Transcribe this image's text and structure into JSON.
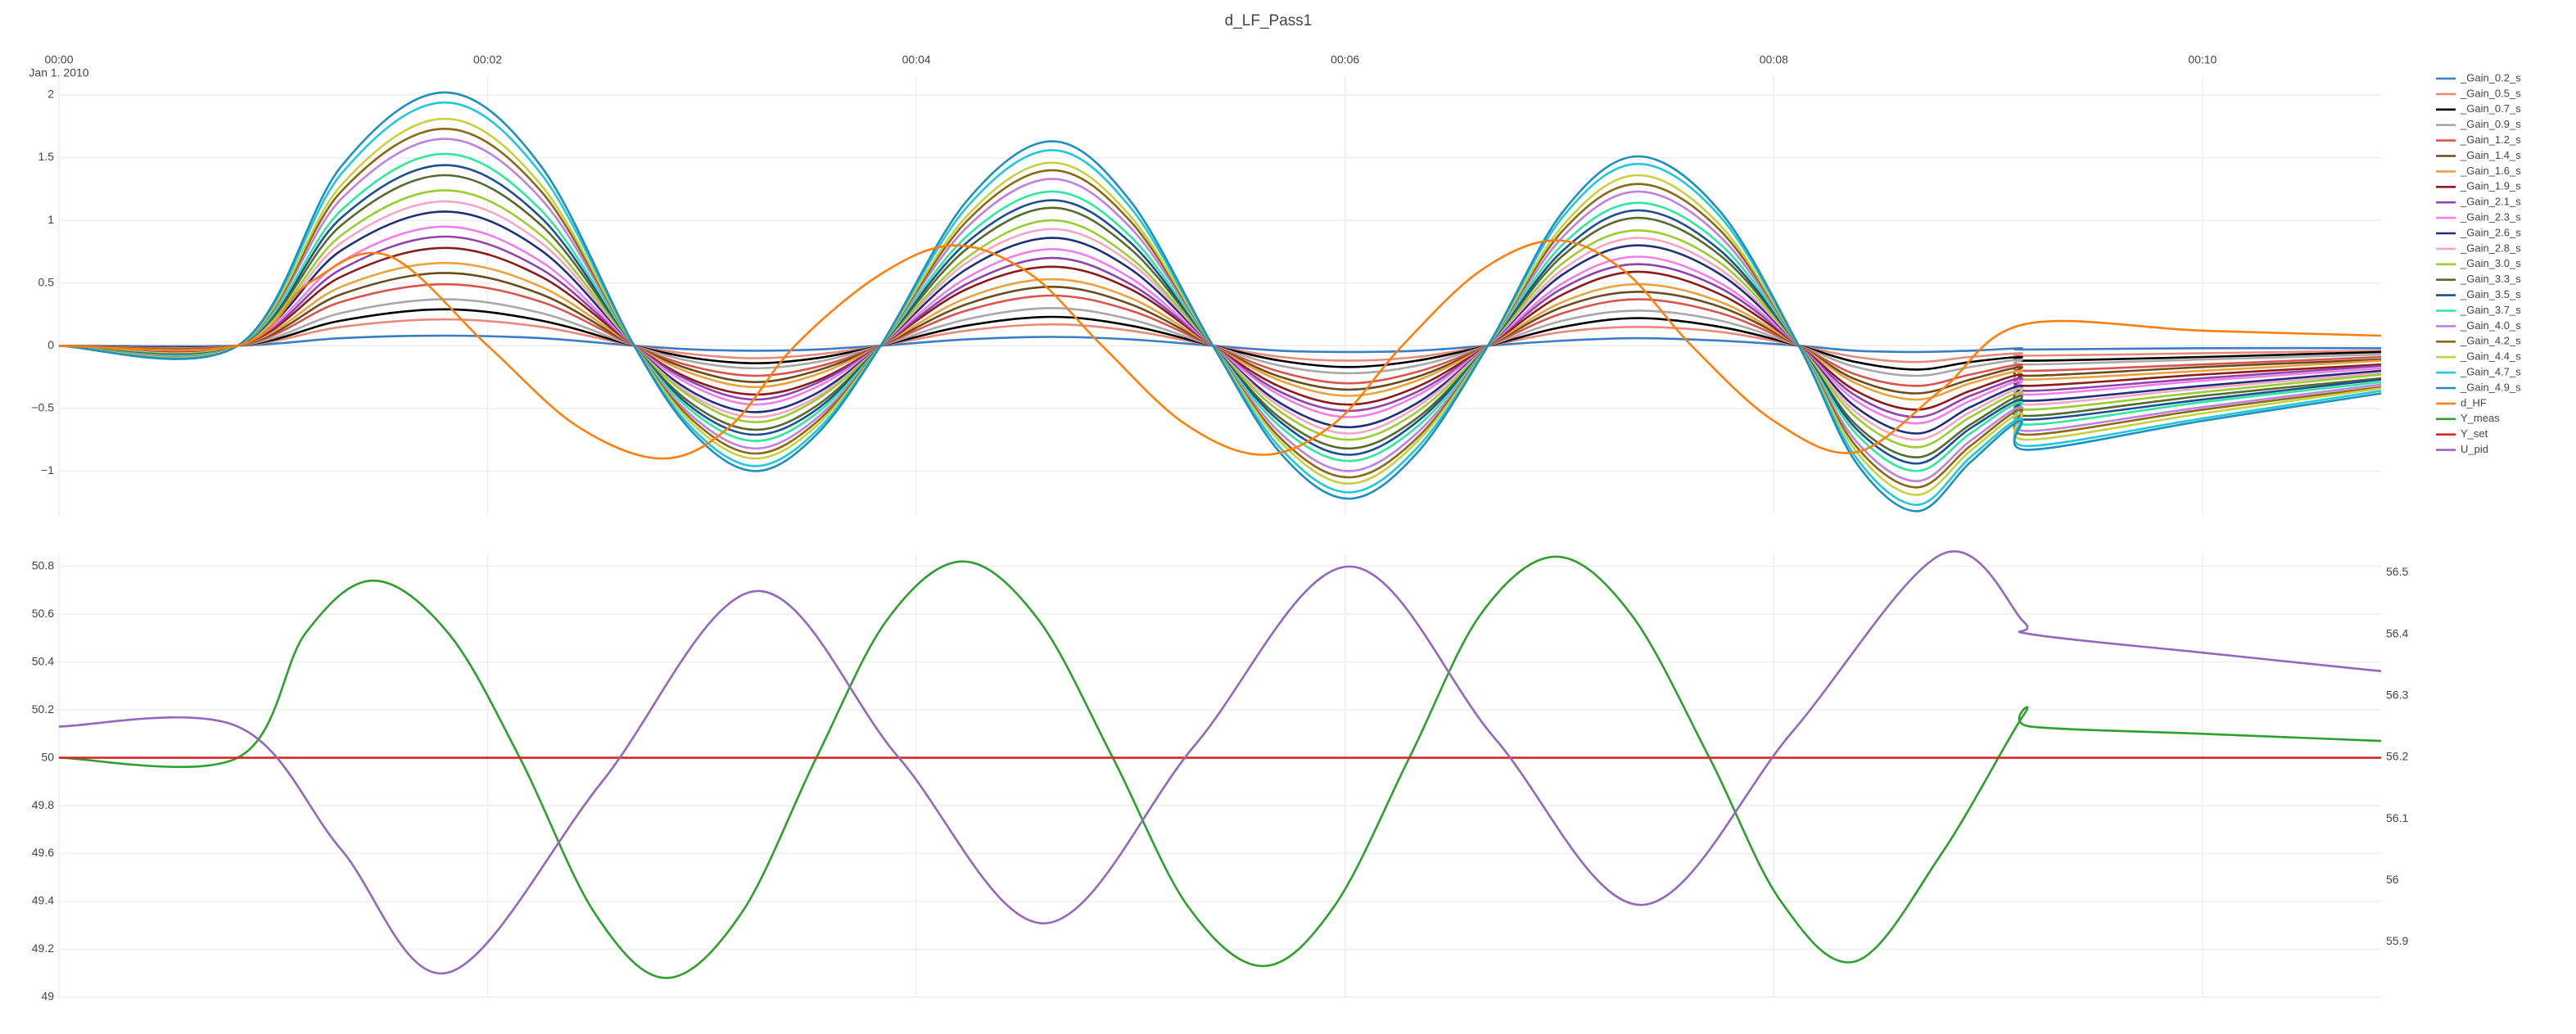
{
  "chart_data": [
    {
      "type": "line",
      "title": "d_LF_Pass1",
      "x_date_label": "Jan 1, 2010",
      "x": [
        0,
        50,
        79,
        108,
        135,
        161,
        178,
        195,
        212,
        230,
        254,
        278,
        300,
        323,
        342,
        361,
        380,
        400,
        421,
        442,
        465,
        487,
        503,
        520,
        535,
        549,
        551,
        600,
        650
      ],
      "xlim": [
        0,
        650
      ],
      "xticks": [
        {
          "value": 0,
          "label": "00:00"
        },
        {
          "value": 120,
          "label": "00:02"
        },
        {
          "value": 240,
          "label": "00:04"
        },
        {
          "value": 360,
          "label": "00:06"
        },
        {
          "value": 480,
          "label": "00:08"
        },
        {
          "value": 600,
          "label": "00:10"
        }
      ],
      "ylim": [
        -1.35,
        2.15
      ],
      "yticks": [
        {
          "value": -1,
          "label": "−1"
        },
        {
          "value": -0.5,
          "label": "−0.5"
        },
        0,
        0.5,
        1,
        1.5,
        2
      ],
      "grid": true,
      "legend": "right",
      "series": [
        {
          "name": "_Gain_0.2_s",
          "color": "#3b7dc4",
          "values": [
            0,
            0,
            0.06,
            0.08,
            0.06,
            0,
            -0.03,
            -0.04,
            -0.03,
            0,
            0.05,
            0.07,
            0.05,
            0,
            -0.04,
            -0.05,
            -0.04,
            0,
            0.04,
            0.06,
            0.04,
            0,
            -0.04,
            -0.05,
            -0.04,
            -0.02,
            -0.03,
            -0.02,
            -0.02
          ]
        },
        {
          "name": "_Gain_0.5_s",
          "color": "#e8897a",
          "values": [
            0,
            0,
            0.15,
            0.21,
            0.15,
            0,
            -0.07,
            -0.1,
            -0.07,
            0,
            0.12,
            0.17,
            0.12,
            0,
            -0.09,
            -0.12,
            -0.09,
            0,
            0.11,
            0.15,
            0.11,
            0,
            -0.09,
            -0.13,
            -0.09,
            -0.06,
            -0.08,
            -0.06,
            -0.04
          ]
        },
        {
          "name": "_Gain_0.7_s",
          "color": "#000000",
          "values": [
            0,
            0,
            0.2,
            0.29,
            0.2,
            0,
            -0.1,
            -0.14,
            -0.1,
            0,
            0.16,
            0.23,
            0.16,
            0,
            -0.12,
            -0.17,
            -0.12,
            0,
            0.15,
            0.22,
            0.15,
            0,
            -0.13,
            -0.19,
            -0.13,
            -0.09,
            -0.12,
            -0.09,
            -0.05
          ]
        },
        {
          "name": "_Gain_0.9_s",
          "color": "#a8a8a8",
          "values": [
            0,
            0,
            0.26,
            0.37,
            0.26,
            0,
            -0.13,
            -0.18,
            -0.13,
            0,
            0.21,
            0.3,
            0.21,
            0,
            -0.16,
            -0.22,
            -0.16,
            0,
            0.2,
            0.28,
            0.2,
            0,
            -0.17,
            -0.24,
            -0.17,
            -0.11,
            -0.15,
            -0.11,
            -0.07
          ]
        },
        {
          "name": "_Gain_1.2_s",
          "color": "#d9534f",
          "values": [
            0,
            0,
            0.35,
            0.49,
            0.35,
            0,
            -0.17,
            -0.24,
            -0.17,
            0,
            0.28,
            0.4,
            0.28,
            0,
            -0.21,
            -0.3,
            -0.21,
            0,
            0.26,
            0.37,
            0.26,
            0,
            -0.23,
            -0.32,
            -0.23,
            -0.15,
            -0.2,
            -0.15,
            -0.09
          ]
        },
        {
          "name": "_Gain_1.4_s",
          "color": "#6b4c1e",
          "values": [
            0,
            0,
            0.41,
            0.58,
            0.41,
            0,
            -0.2,
            -0.29,
            -0.2,
            0,
            0.33,
            0.47,
            0.33,
            0,
            -0.25,
            -0.35,
            -0.25,
            0,
            0.31,
            0.43,
            0.31,
            0,
            -0.27,
            -0.38,
            -0.27,
            -0.17,
            -0.24,
            -0.17,
            -0.11
          ]
        },
        {
          "name": "_Gain_1.6_s",
          "color": "#e8a33d",
          "values": [
            0,
            0,
            0.47,
            0.66,
            0.47,
            0,
            -0.23,
            -0.33,
            -0.23,
            0,
            0.38,
            0.53,
            0.38,
            0,
            -0.28,
            -0.4,
            -0.28,
            0,
            0.35,
            0.49,
            0.35,
            0,
            -0.3,
            -0.43,
            -0.3,
            -0.2,
            -0.27,
            -0.2,
            -0.12
          ]
        },
        {
          "name": "_Gain_1.9_s",
          "color": "#8b1a1a",
          "values": [
            0,
            0,
            0.55,
            0.78,
            0.55,
            0,
            -0.28,
            -0.39,
            -0.28,
            0,
            0.45,
            0.63,
            0.45,
            0,
            -0.33,
            -0.47,
            -0.33,
            0,
            0.41,
            0.59,
            0.41,
            0,
            -0.36,
            -0.51,
            -0.36,
            -0.23,
            -0.32,
            -0.23,
            -0.15
          ]
        },
        {
          "name": "_Gain_2.1_s",
          "color": "#8e44ad",
          "values": [
            0,
            0,
            0.61,
            0.87,
            0.61,
            0,
            -0.3,
            -0.43,
            -0.3,
            0,
            0.49,
            0.7,
            0.49,
            0,
            -0.37,
            -0.52,
            -0.37,
            0,
            0.46,
            0.65,
            0.46,
            0,
            -0.4,
            -0.57,
            -0.4,
            -0.26,
            -0.36,
            -0.26,
            -0.16
          ]
        },
        {
          "name": "_Gain_2.3_s",
          "color": "#f07ee8",
          "values": [
            0,
            0,
            0.67,
            0.95,
            0.67,
            0,
            -0.33,
            -0.47,
            -0.33,
            0,
            0.54,
            0.77,
            0.54,
            0,
            -0.4,
            -0.57,
            -0.4,
            0,
            0.5,
            0.71,
            0.5,
            0,
            -0.44,
            -0.62,
            -0.44,
            -0.28,
            -0.39,
            -0.28,
            -0.18
          ]
        },
        {
          "name": "_Gain_2.6_s",
          "color": "#1f2f7a",
          "values": [
            0,
            0,
            0.76,
            1.07,
            0.76,
            0,
            -0.38,
            -0.53,
            -0.38,
            0,
            0.61,
            0.86,
            0.61,
            0,
            -0.46,
            -0.65,
            -0.46,
            0,
            0.57,
            0.8,
            0.57,
            0,
            -0.49,
            -0.7,
            -0.49,
            -0.32,
            -0.44,
            -0.32,
            -0.2
          ]
        },
        {
          "name": "_Gain_2.8_s",
          "color": "#f4a6c6",
          "values": [
            0,
            0,
            0.82,
            1.15,
            0.82,
            0,
            -0.41,
            -0.57,
            -0.41,
            0,
            0.66,
            0.93,
            0.66,
            0,
            -0.49,
            -0.7,
            -0.49,
            0,
            0.61,
            0.86,
            0.61,
            0,
            -0.53,
            -0.75,
            -0.53,
            -0.34,
            -0.47,
            -0.34,
            -0.22
          ]
        },
        {
          "name": "_Gain_3.0_s",
          "color": "#9acd32",
          "values": [
            0,
            0,
            0.88,
            1.24,
            0.88,
            0,
            -0.43,
            -0.61,
            -0.43,
            0,
            0.7,
            1,
            0.7,
            0,
            -0.53,
            -0.75,
            -0.53,
            0,
            0.66,
            0.92,
            0.66,
            0,
            -0.57,
            -0.81,
            -0.57,
            -0.37,
            -0.51,
            -0.37,
            -0.23
          ]
        },
        {
          "name": "_Gain_3.3_s",
          "color": "#556b2f",
          "values": [
            0,
            0,
            0.96,
            1.36,
            0.96,
            0,
            -0.48,
            -0.67,
            -0.48,
            0,
            0.77,
            1.1,
            0.77,
            0,
            -0.58,
            -0.82,
            -0.58,
            0,
            0.72,
            1.02,
            0.72,
            0,
            -0.63,
            -0.89,
            -0.63,
            -0.4,
            -0.56,
            -0.4,
            -0.26
          ]
        },
        {
          "name": "_Gain_3.5_s",
          "color": "#1e4f91",
          "values": [
            0,
            0,
            1.02,
            1.44,
            1.02,
            0,
            -0.51,
            -0.71,
            -0.51,
            0,
            0.82,
            1.16,
            0.82,
            0,
            -0.61,
            -0.87,
            -0.61,
            0,
            0.76,
            1.08,
            0.76,
            0,
            -0.66,
            -0.94,
            -0.66,
            -0.43,
            -0.59,
            -0.43,
            -0.27
          ]
        },
        {
          "name": "_Gain_3.7_s",
          "color": "#2ee8a0",
          "values": [
            0,
            0,
            1.08,
            1.53,
            1.08,
            0,
            -0.54,
            -0.76,
            -0.54,
            0,
            0.87,
            1.23,
            0.87,
            0,
            -0.65,
            -0.92,
            -0.65,
            0,
            0.81,
            1.14,
            0.81,
            0,
            -0.7,
            -1,
            -0.7,
            -0.45,
            -0.63,
            -0.45,
            -0.29
          ]
        },
        {
          "name": "_Gain_4.0_s",
          "color": "#c080e0",
          "values": [
            0,
            0,
            1.17,
            1.65,
            1.17,
            0,
            -0.58,
            -0.82,
            -0.58,
            0,
            0.94,
            1.33,
            0.94,
            0,
            -0.7,
            -1,
            -0.7,
            0,
            0.87,
            1.23,
            0.87,
            0,
            -0.76,
            -1.08,
            -0.76,
            -0.49,
            -0.68,
            -0.49,
            -0.31
          ]
        },
        {
          "name": "_Gain_4.2_s",
          "color": "#8b6914",
          "values": [
            0,
            0,
            1.23,
            1.73,
            1.23,
            0,
            -0.61,
            -0.86,
            -0.61,
            0,
            0.99,
            1.4,
            0.99,
            0,
            -0.74,
            -1.05,
            -0.74,
            0,
            0.92,
            1.29,
            0.92,
            0,
            -0.8,
            -1.13,
            -0.8,
            -0.51,
            -0.71,
            -0.51,
            -0.33
          ]
        },
        {
          "name": "_Gain_4.4_s",
          "color": "#c8d040",
          "values": [
            0,
            0,
            1.28,
            1.81,
            1.28,
            0,
            -0.64,
            -0.9,
            -0.64,
            0,
            1.03,
            1.46,
            1.03,
            0,
            -0.77,
            -1.1,
            -0.77,
            0,
            0.96,
            1.36,
            0.96,
            0,
            -0.84,
            -1.19,
            -0.84,
            -0.54,
            -0.75,
            -0.54,
            -0.34
          ]
        },
        {
          "name": "_Gain_4.7_s",
          "color": "#20c8d8",
          "values": [
            0,
            0,
            1.37,
            1.94,
            1.37,
            0,
            -0.68,
            -0.96,
            -0.68,
            0,
            1.1,
            1.56,
            1.1,
            0,
            -0.82,
            -1.17,
            -0.82,
            0,
            1.03,
            1.45,
            1.03,
            0,
            -0.89,
            -1.27,
            -0.89,
            -0.58,
            -0.8,
            -0.58,
            -0.36
          ]
        },
        {
          "name": "_Gain_4.9_s",
          "color": "#1f8fc0",
          "values": [
            0,
            0,
            1.43,
            2.02,
            1.43,
            0,
            -0.71,
            -1,
            -0.71,
            0,
            1.15,
            1.63,
            1.15,
            0,
            -0.86,
            -1.22,
            -0.86,
            0,
            1.07,
            1.51,
            1.07,
            0,
            -0.93,
            -1.32,
            -0.93,
            -0.6,
            -0.83,
            -0.6,
            -0.38
          ]
        },
        {
          "name": "d_HF",
          "color": "#ff7f0e",
          "x": [
            0,
            50,
            70,
            92,
            120,
            145,
            169,
            188,
            206,
            230,
            251,
            272,
            292,
            315,
            337,
            357,
            376,
            398,
            419,
            438,
            457,
            480,
            503,
            527,
            550,
            600,
            650
          ],
          "values": [
            0,
            0,
            0.5,
            0.72,
            0,
            -0.64,
            -0.9,
            -0.64,
            0,
            0.57,
            0.8,
            0.57,
            0,
            -0.62,
            -0.87,
            -0.62,
            0,
            0.6,
            0.84,
            0.6,
            0,
            -0.6,
            -0.85,
            -0.35,
            0.17,
            0.12,
            0.08
          ]
        }
      ]
    },
    {
      "type": "line",
      "xlim": [
        0,
        650
      ],
      "ylim": [
        49,
        50.85
      ],
      "yticks": [
        49,
        49.2,
        49.4,
        49.6,
        49.8,
        50,
        50.2,
        50.4,
        50.6,
        50.8
      ],
      "y2lim": [
        55.81,
        56.53
      ],
      "y2ticks": [
        55.9,
        56,
        56.1,
        56.2,
        56.3,
        56.4,
        56.5
      ],
      "grid": true,
      "series": [
        {
          "name": "Y_meas",
          "color": "#2ca02c",
          "x": [
            0,
            50,
            69,
            88,
            109,
            129,
            150,
            170,
            191,
            212,
            232,
            253,
            274,
            295,
            316,
            337,
            357,
            378,
            398,
            419,
            440,
            462,
            482,
            503,
            527,
            550,
            552,
            600,
            650
          ],
          "values": [
            50,
            50,
            50.52,
            50.74,
            50.52,
            50,
            49.35,
            49.08,
            49.35,
            50,
            50.58,
            50.82,
            50.58,
            50,
            49.38,
            49.13,
            49.38,
            50,
            50.6,
            50.84,
            50.6,
            50,
            49.4,
            49.15,
            49.6,
            50.18,
            50.13,
            50.1,
            50.07
          ]
        },
        {
          "name": "Y_set",
          "color": "#d62728",
          "x": [
            0,
            650
          ],
          "values": [
            50,
            50
          ]
        },
        {
          "name": "U_pid",
          "color": "#9467bd",
          "axis": "y2",
          "x": [
            0,
            50,
            79,
            109,
            152,
            195,
            235,
            276,
            318,
            361,
            402,
            443,
            485,
            527,
            550,
            552,
            600,
            650
          ],
          "values": [
            56.25,
            56.25,
            56.05,
            55.85,
            56.16,
            56.47,
            56.2,
            55.93,
            56.22,
            56.51,
            56.23,
            55.96,
            56.24,
            56.53,
            56.42,
            56.4,
            56.37,
            56.34
          ]
        }
      ]
    }
  ]
}
